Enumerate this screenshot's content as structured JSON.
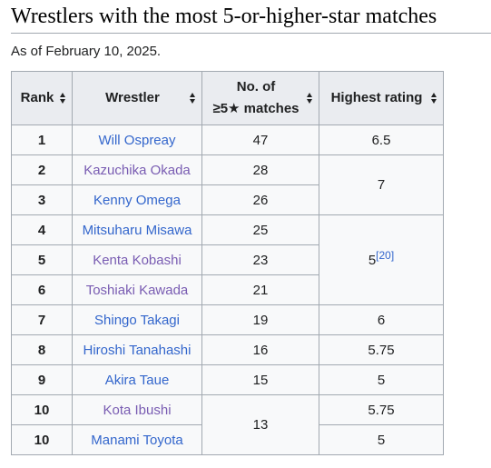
{
  "heading": "Wrestlers with the most 5-or-higher-star matches",
  "as_of": "As of February 10, 2025.",
  "columns": {
    "rank": "Rank",
    "wrestler": "Wrestler",
    "matches_line1": "No. of",
    "matches_line2": "≥5★ matches",
    "rating": "Highest rating"
  },
  "rows": [
    {
      "rank": "1",
      "wrestler": "Will Ospreay",
      "matches": "47",
      "rating": "6.5"
    },
    {
      "rank": "2",
      "wrestler": "Kazuchika Okada",
      "matches": "28",
      "rating": "7"
    },
    {
      "rank": "3",
      "wrestler": "Kenny Omega",
      "matches": "26"
    },
    {
      "rank": "4",
      "wrestler": "Mitsuharu Misawa",
      "matches": "25",
      "rating": "5",
      "rating_ref": "[20]"
    },
    {
      "rank": "5",
      "wrestler": "Kenta Kobashi",
      "matches": "23"
    },
    {
      "rank": "6",
      "wrestler": "Toshiaki Kawada",
      "matches": "21"
    },
    {
      "rank": "7",
      "wrestler": "Shingo Takagi",
      "matches": "19",
      "rating": "6"
    },
    {
      "rank": "8",
      "wrestler": "Hiroshi Tanahashi",
      "matches": "16",
      "rating": "5.75"
    },
    {
      "rank": "9",
      "wrestler": "Akira Taue",
      "matches": "15",
      "rating": "5"
    },
    {
      "rank": "10",
      "wrestler": "Kota Ibushi",
      "matches": "13",
      "rating": "5.75"
    },
    {
      "rank": "10",
      "wrestler": "Manami Toyota",
      "rating": "5"
    }
  ],
  "link_colors": {
    "unvisited": "#3366cc",
    "visited": "#795cb2"
  }
}
